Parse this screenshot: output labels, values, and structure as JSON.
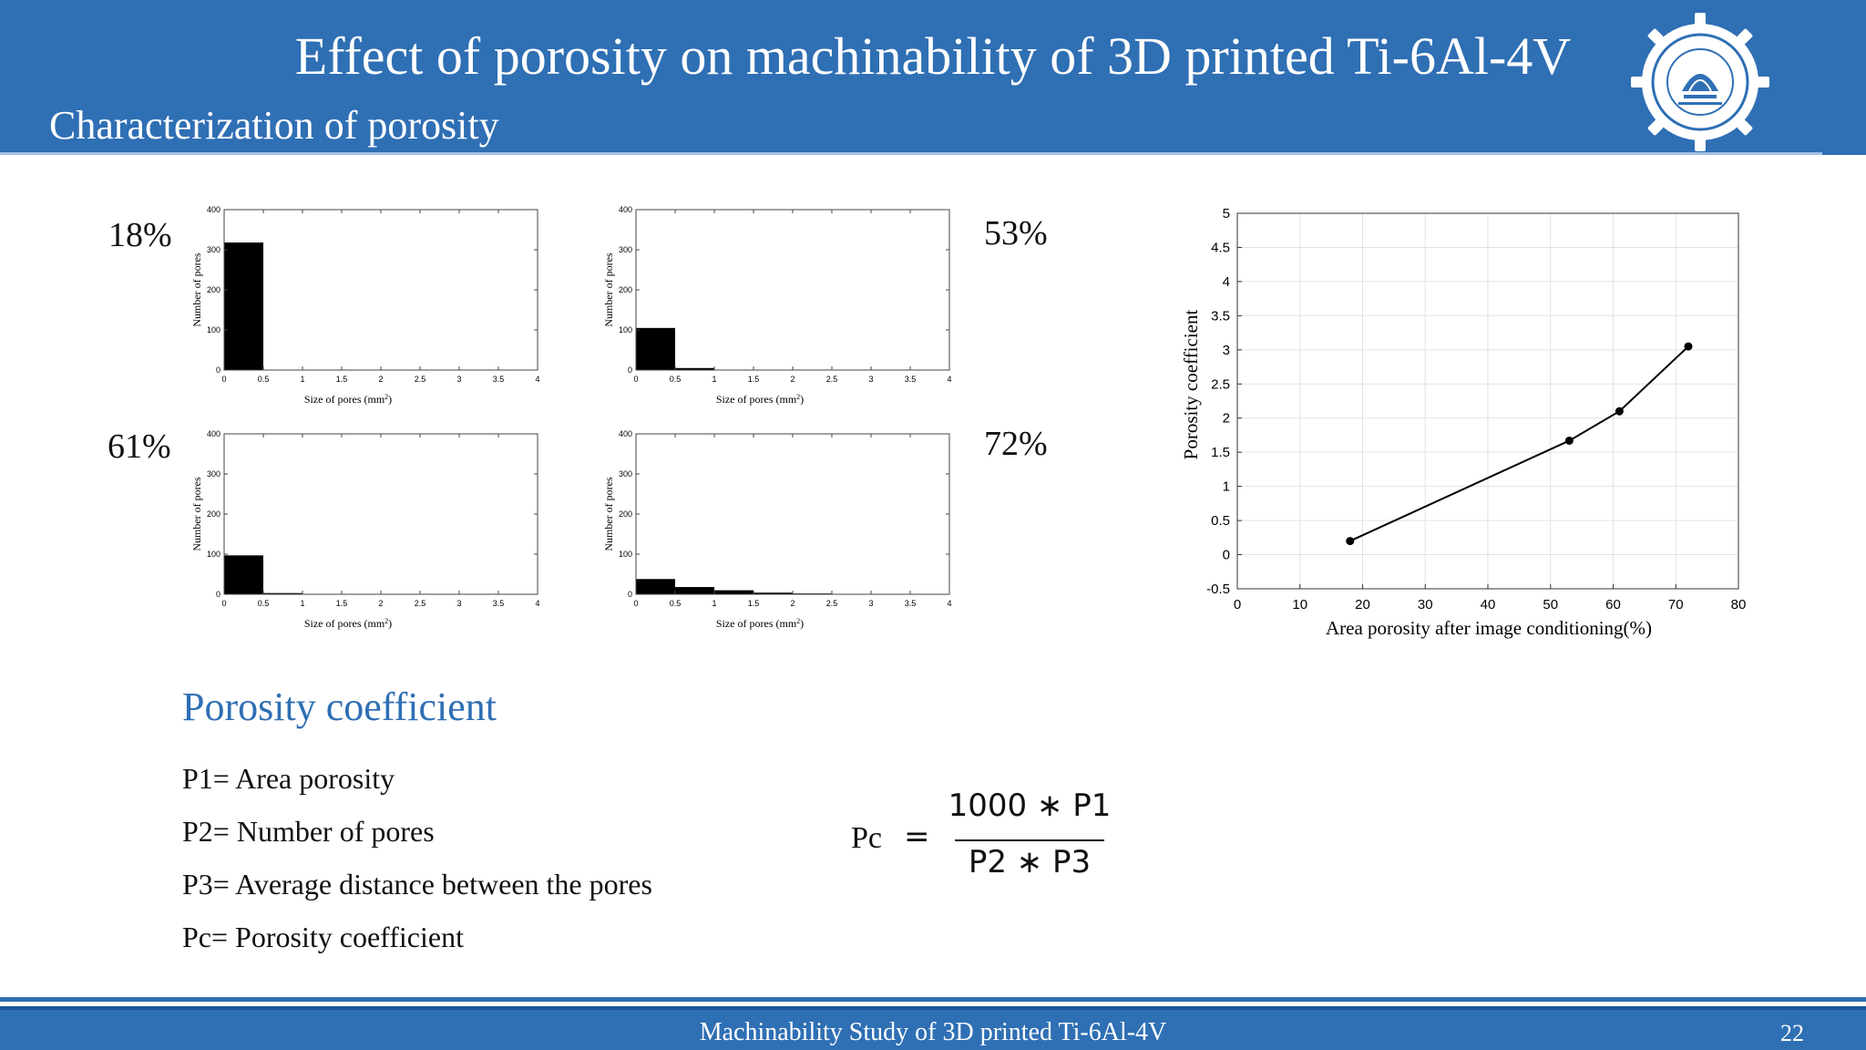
{
  "header": {
    "title": "Effect of porosity on machinability of 3D printed Ti-6Al-4V",
    "section": "Characterization of porosity"
  },
  "logo": {
    "icon": "iit-bombay-emblem-icon"
  },
  "histograms": [
    {
      "label": "18%",
      "xlabel": "Size of pores (mm",
      "xlabel_sup": "2",
      "ylabel": "Number of pores",
      "bin_width": 0.5,
      "counts": [
        318,
        0,
        0,
        0,
        0,
        0,
        0,
        0
      ]
    },
    {
      "label": "53%",
      "xlabel": "Size of pores (mm",
      "xlabel_sup": "2",
      "ylabel": "Number of pores",
      "bin_width": 0.5,
      "counts": [
        105,
        5,
        0,
        0,
        0,
        0,
        0,
        0
      ]
    },
    {
      "label": "61%",
      "xlabel": "Size of pores (mm",
      "xlabel_sup": "2",
      "ylabel": "Number of pores",
      "bin_width": 0.5,
      "counts": [
        97,
        3,
        0,
        0,
        0,
        0,
        0,
        0
      ]
    },
    {
      "label": "72%",
      "xlabel": "Size of pores (mm",
      "xlabel_sup": "2",
      "ylabel": "Number of pores",
      "bin_width": 0.5,
      "counts": [
        38,
        18,
        10,
        4,
        2,
        1,
        1,
        1
      ]
    }
  ],
  "hist_axes": {
    "x_ticks": [
      "0",
      "0.5",
      "1",
      "1.5",
      "2",
      "2.5",
      "3",
      "3.5",
      "4"
    ],
    "y_ticks": [
      "0",
      "100",
      "200",
      "300",
      "400"
    ],
    "xlim": [
      0,
      4
    ],
    "ylim": [
      0,
      400
    ]
  },
  "chart_data": {
    "type": "line",
    "xlabel": "Area porosity after image conditioning(%)",
    "ylabel": "Porosity coefficient",
    "x": [
      18,
      53,
      61,
      72
    ],
    "y": [
      0.2,
      1.67,
      2.1,
      3.05
    ],
    "xlim": [
      0,
      80
    ],
    "ylim": [
      -0.5,
      5
    ],
    "x_ticks": [
      "0",
      "10",
      "20",
      "30",
      "40",
      "50",
      "60",
      "70",
      "80"
    ],
    "y_ticks": [
      "-0.5",
      "0",
      "0.5",
      "1",
      "1.5",
      "2",
      "2.5",
      "3",
      "3.5",
      "4",
      "4.5",
      "5"
    ],
    "grid": true,
    "color": "#000000"
  },
  "porosity": {
    "heading": "Porosity coefficient",
    "definitions": [
      "P1= Area porosity",
      "P2= Number of pores",
      "P3= Average distance between the pores",
      "Pc= Porosity coefficient"
    ],
    "formula": {
      "lhs": "Pc",
      "eq": "=",
      "numerator": "1000 ∗ P1",
      "denominator": "P2 ∗ P3"
    }
  },
  "footer": {
    "text": "Machinability Study of 3D printed Ti-6Al-4V",
    "page": "22"
  },
  "colors": {
    "header": "#2f6fb4",
    "accent_text": "#2f6fb4"
  }
}
